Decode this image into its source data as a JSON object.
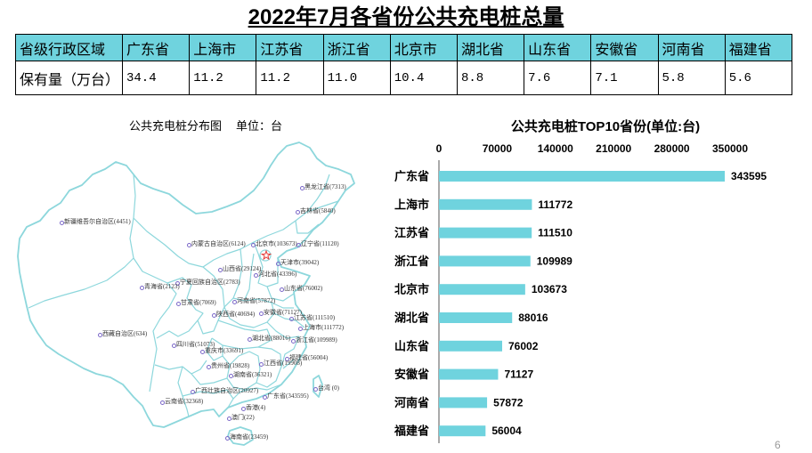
{
  "title": "2022年7月各省份公共充电桩总量",
  "table": {
    "header_label": "省级行政区域",
    "row_label": "保有量（万台）",
    "columns": [
      {
        "province": "广东省",
        "value": "34.4"
      },
      {
        "province": "上海市",
        "value": "11.2"
      },
      {
        "province": "江苏省",
        "value": "11.2"
      },
      {
        "province": "浙江省",
        "value": "11.0"
      },
      {
        "province": "北京市",
        "value": "10.4"
      },
      {
        "province": "湖北省",
        "value": "8.8"
      },
      {
        "province": "山东省",
        "value": "7.6"
      },
      {
        "province": "安徽省",
        "value": "7.1"
      },
      {
        "province": "河南省",
        "value": "5.8"
      },
      {
        "province": "福建省",
        "value": "5.6"
      }
    ]
  },
  "map": {
    "title": "公共充电桩分布图",
    "unit": "单位：台",
    "labels": [
      "黑龙江省(7313)",
      "吉林省(5840)",
      "新疆维吾尔自治区(4451)",
      "内蒙古自治区(6124)",
      "北京市(103673)",
      "辽宁省(11120)",
      "天津市(39042)",
      "山西省(29124)",
      "河北省(43396)",
      "宁夏回族自治区(2783)",
      "青海省(2123)",
      "山东省(76002)",
      "甘肃省(7069)",
      "河南省(57872)",
      "陕西省(40694)",
      "安徽省(71127)",
      "江苏省(111510)",
      "上海市(111772)",
      "西藏自治区(634)",
      "四川省(51073)",
      "湖北省(88016)",
      "浙江省(109989)",
      "重庆市(33691)",
      "福建省(56004)",
      "贵州省(19828)",
      "江西省(19908)",
      "湖南省(36321)",
      "台湾 (0)",
      "广西壮族自治区(20927)",
      "广东省(343595)",
      "云南省(32368)",
      "香港(4)",
      "澳门(22)",
      "海南省(23459)"
    ]
  },
  "chart_data": {
    "type": "bar",
    "orientation": "horizontal",
    "title": "公共充电桩TOP10省份(单位:台)",
    "categories": [
      "广东省",
      "上海市",
      "江苏省",
      "浙江省",
      "北京市",
      "湖北省",
      "山东省",
      "安徽省",
      "河南省",
      "福建省"
    ],
    "values": [
      343595,
      111772,
      111510,
      109989,
      103673,
      88016,
      76002,
      71127,
      57872,
      56004
    ],
    "xlim": [
      0,
      350000
    ],
    "xticks": [
      0,
      70000,
      140000,
      210000,
      280000,
      350000
    ],
    "value_axis_position": "top",
    "data_labels": true,
    "grid": false,
    "legend": "none",
    "bar_color": "#6fd3de"
  },
  "colors": {
    "accent": "#6fd3de",
    "map_border": "#8dd7dc",
    "beijing_star": "#e53935",
    "marker": "#7b68c8"
  },
  "page_number": "6"
}
